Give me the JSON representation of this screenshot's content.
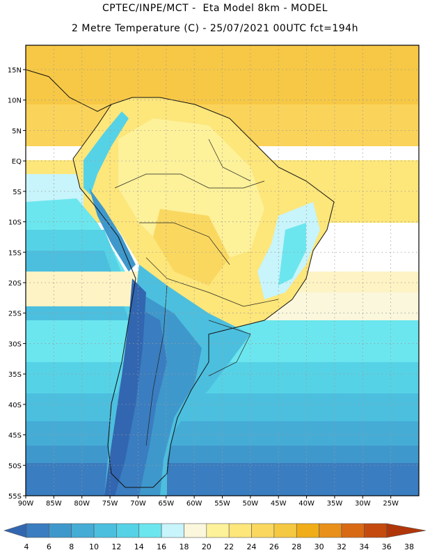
{
  "header": {
    "title_line1": "CPTEC/INPE/MCT -  Eta Model 8km - MODEL",
    "title_line2": "2 Metre Temperature (C) - 25/07/2021 00UTC fct=194h"
  },
  "map": {
    "region": "South America",
    "lon_range": [
      -90,
      -20
    ],
    "lat_range": [
      -55,
      19
    ],
    "lat_labels": [
      "15N",
      "10N",
      "5N",
      "EQ",
      "5S",
      "10S",
      "15S",
      "20S",
      "25S",
      "30S",
      "35S",
      "40S",
      "45S",
      "50S",
      "55S"
    ],
    "lon_labels": [
      "90W",
      "85W",
      "80W",
      "75W",
      "70W",
      "65W",
      "60W",
      "55W",
      "50W",
      "45W",
      "40W",
      "35W",
      "30W",
      "25W"
    ],
    "grid": "dotted"
  },
  "colorbar": {
    "values": [
      "4",
      "6",
      "8",
      "10",
      "12",
      "14",
      "16",
      "18",
      "20",
      "22",
      "24",
      "26",
      "28",
      "30",
      "32",
      "34",
      "36",
      "38"
    ],
    "colors": [
      "#3266b0",
      "#3a7dc0",
      "#3f98cc",
      "#45acd6",
      "#4cbfdf",
      "#56d2e6",
      "#6ce6ee",
      "#c8f4fb",
      "#fbf7dd",
      "#fdf19a",
      "#fde67a",
      "#fad860",
      "#f5c842",
      "#f0ad18",
      "#e8901a",
      "#d96a14",
      "#c44b0d",
      "#b0360a"
    ]
  }
}
